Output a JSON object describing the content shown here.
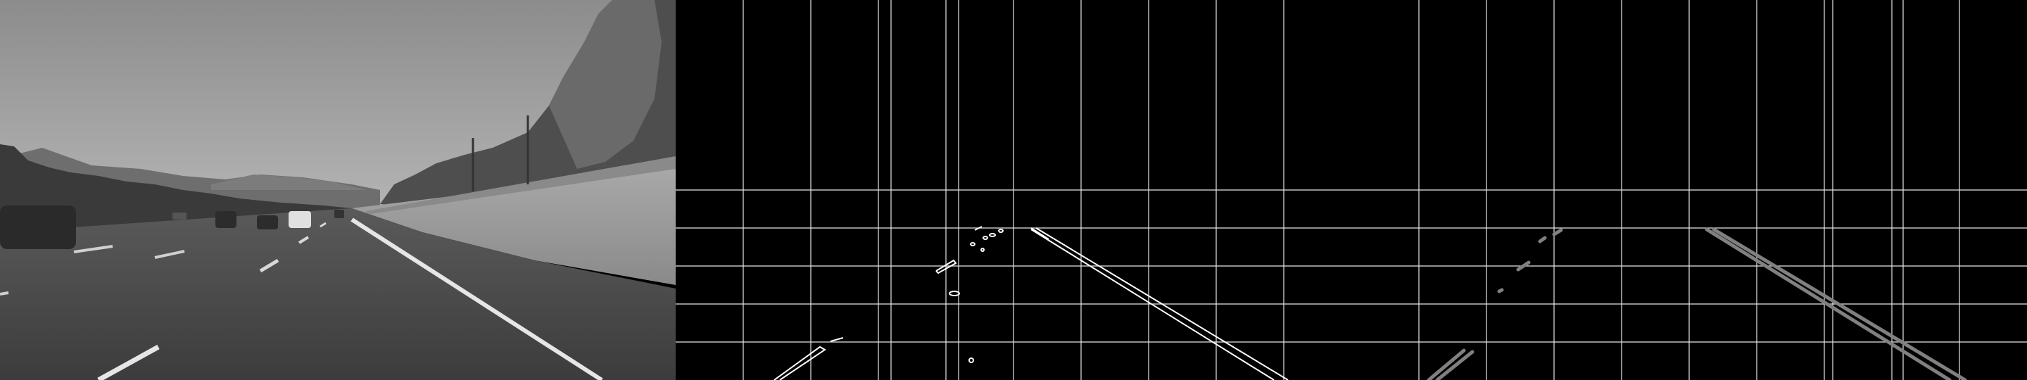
{
  "panels": [
    {
      "id": "grayscale-road-photo",
      "kind": "photo"
    },
    {
      "id": "canny-edges-with-grid",
      "kind": "edge-map"
    },
    {
      "id": "hough-lines-with-grid",
      "kind": "line-map"
    }
  ],
  "colors": {
    "sky": "#9a9a9a",
    "road": "#4a4a4a",
    "grid": "#e6e6e6",
    "edge": "#ffffff",
    "hough_line": "#808080"
  }
}
